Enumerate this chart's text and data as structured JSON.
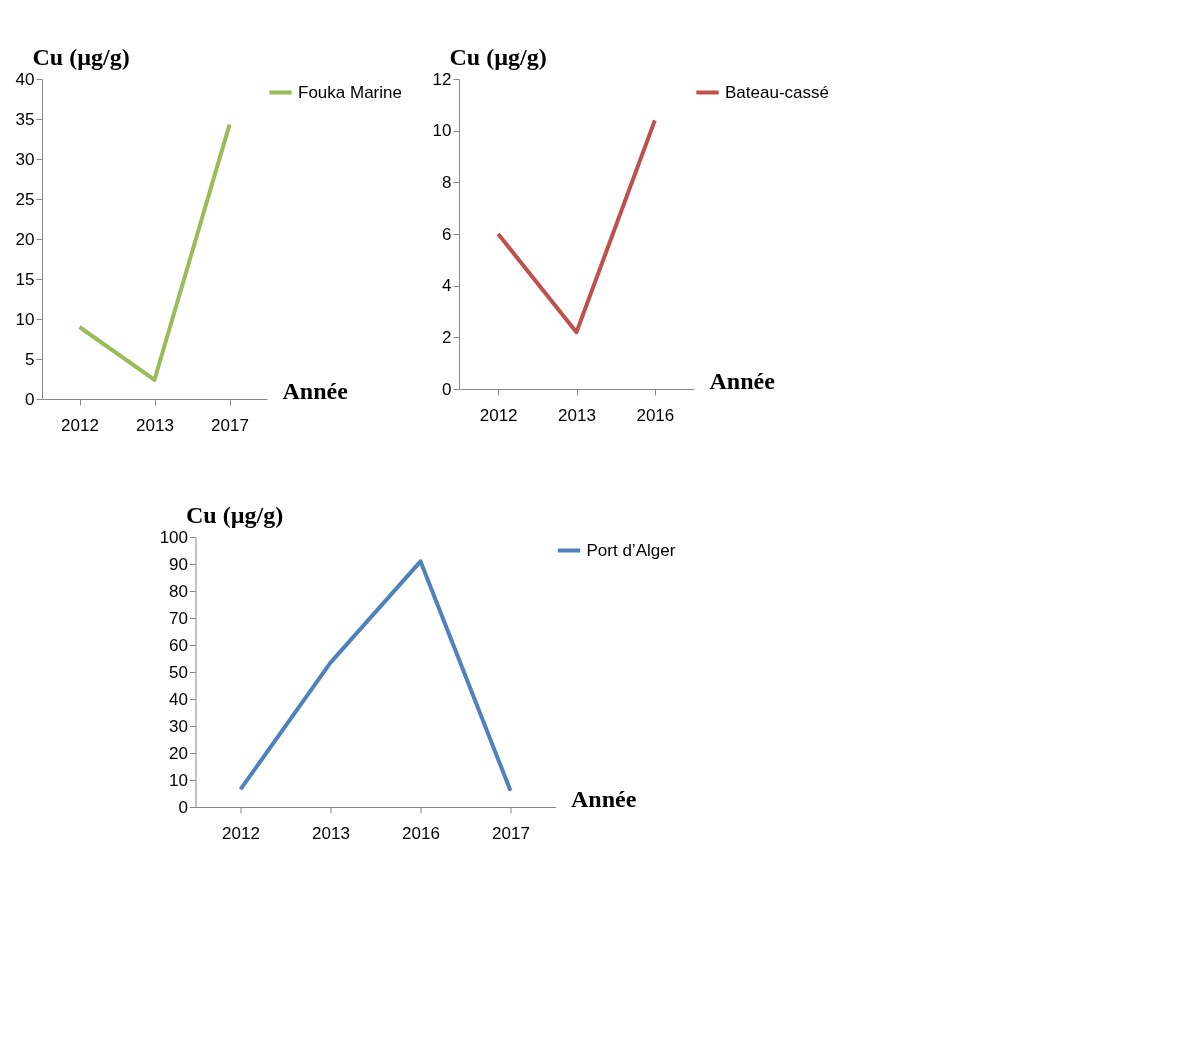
{
  "chart_data": [
    {
      "type": "line",
      "categories": [
        "2012",
        "2013",
        "2017"
      ],
      "ylabel": "Cu (µg/g)",
      "xlabel": "Année",
      "ylim": [
        0,
        40
      ],
      "yticks": [
        0,
        5,
        10,
        15,
        20,
        25,
        30,
        35,
        40
      ],
      "grid": false,
      "legend": "right",
      "marker": "none",
      "series": [
        {
          "name": "Fouka Marine",
          "color": "#9bbb59",
          "values": [
            9.0,
            2.4,
            34.3
          ]
        }
      ]
    },
    {
      "type": "line",
      "categories": [
        "2012",
        "2013",
        "2016"
      ],
      "ylabel": "Cu (µg/g)",
      "xlabel": "Année",
      "ylim": [
        0,
        12
      ],
      "yticks": [
        0,
        2,
        4,
        6,
        8,
        10,
        12
      ],
      "grid": false,
      "legend": "right",
      "marker": "none",
      "series": [
        {
          "name": "Bateau-cassé",
          "color": "#c0504d",
          "values": [
            6.0,
            2.2,
            10.4
          ]
        }
      ]
    },
    {
      "type": "line",
      "categories": [
        "2012",
        "2013",
        "2016",
        "2017"
      ],
      "ylabel": "Cu (µg/g)",
      "xlabel": "Année",
      "ylim": [
        0,
        100
      ],
      "yticks": [
        0,
        10,
        20,
        30,
        40,
        50,
        60,
        70,
        80,
        90,
        100
      ],
      "grid": false,
      "legend": "right",
      "marker": "none",
      "series": [
        {
          "name": "Port d’Alger",
          "color": "#4f81bd",
          "values": [
            6.5,
            53.5,
            91,
            6
          ]
        }
      ]
    }
  ]
}
